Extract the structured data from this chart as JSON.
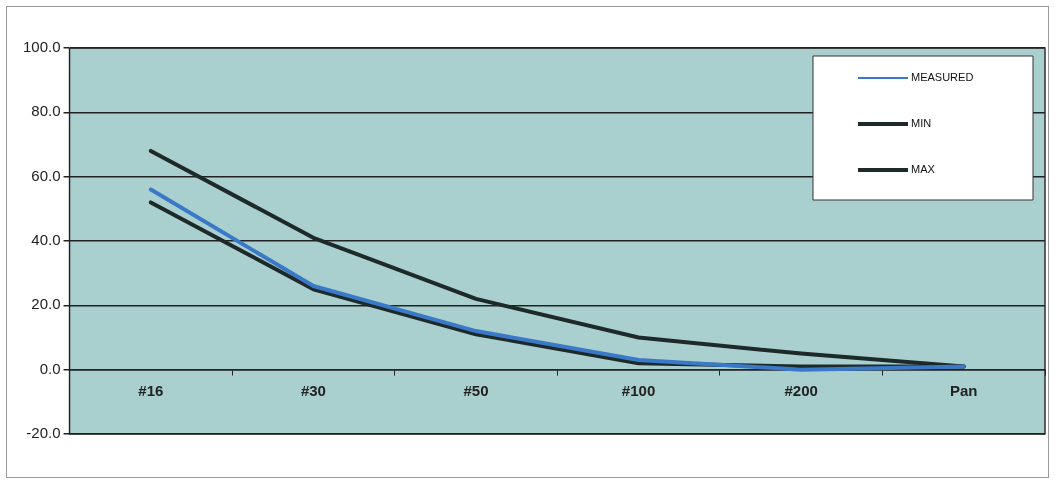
{
  "chart_data": {
    "type": "line",
    "categories": [
      "#16",
      "#30",
      "#50",
      "#100",
      "#200",
      "Pan"
    ],
    "series": [
      {
        "name": "MEASURED",
        "color": "#3a78c8",
        "values": [
          56,
          26,
          12,
          3,
          0,
          1
        ]
      },
      {
        "name": "MIN",
        "color": "#1e2a2a",
        "values": [
          52,
          25,
          11,
          2,
          1,
          1
        ]
      },
      {
        "name": "MAX",
        "color": "#1e2a2a",
        "values": [
          68,
          41,
          22,
          10,
          5,
          1
        ]
      }
    ],
    "ylim": [
      -20,
      100
    ],
    "yticks": [
      {
        "value": -20,
        "label": "-20.0"
      },
      {
        "value": 0,
        "label": "0.0"
      },
      {
        "value": 20,
        "label": "20.0"
      },
      {
        "value": 40,
        "label": "40.0"
      },
      {
        "value": 60,
        "label": "60.0"
      },
      {
        "value": 80,
        "label": "80.0"
      },
      {
        "value": 100,
        "label": "100.0"
      }
    ],
    "grid": "y",
    "legend": "top right",
    "marker": "none",
    "line_style": "solid"
  }
}
